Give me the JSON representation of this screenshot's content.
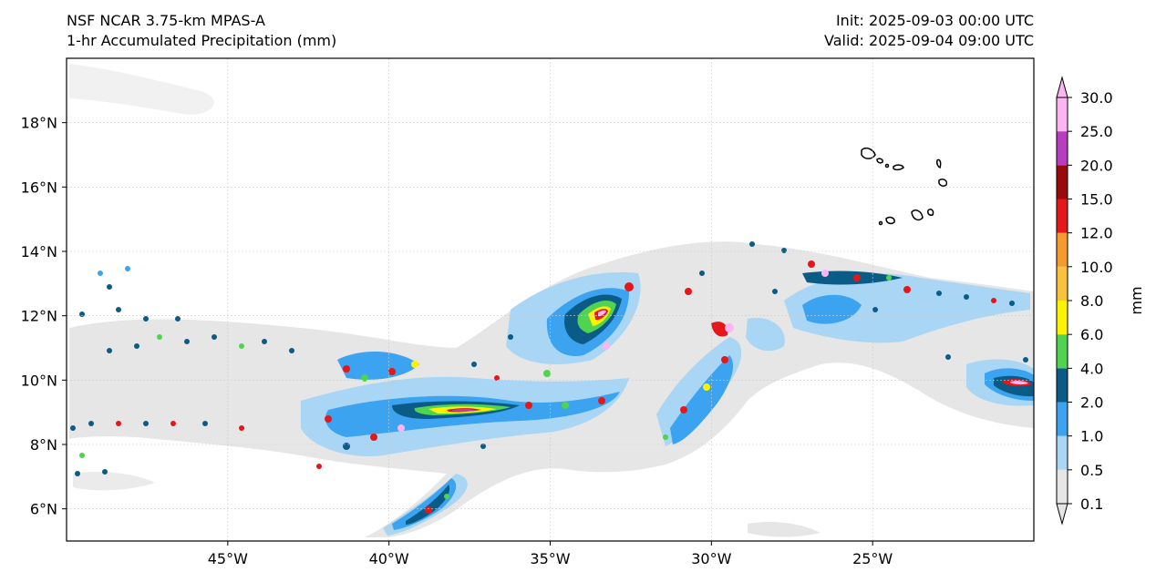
{
  "header": {
    "title_line1": "NSF NCAR 3.75-km MPAS-A",
    "title_line2": "1-hr Accumulated Precipitation (mm)",
    "init": "Init: 2025-09-03 00:00 UTC",
    "valid": "Valid: 2025-09-04 09:00 UTC"
  },
  "map": {
    "lon_range": [
      -50.0,
      -20.0
    ],
    "lat_range": [
      5.0,
      20.0
    ],
    "lon_ticks": [
      -45,
      -40,
      -35,
      -30,
      -25
    ],
    "lon_tick_labels": [
      "45°W",
      "40°W",
      "35°W",
      "30°W",
      "25°W"
    ],
    "lat_ticks": [
      6,
      8,
      10,
      12,
      14,
      16,
      18
    ],
    "lat_tick_labels": [
      "6°N",
      "8°N",
      "10°N",
      "12°N",
      "14°N",
      "16°N",
      "18°N"
    ],
    "gridlines": true,
    "land_feature": "Cape Verde islands outline"
  },
  "colorbar": {
    "label": "mm",
    "levels": [
      "0.1",
      "0.5",
      "1.0",
      "2.0",
      "4.0",
      "6.0",
      "8.0",
      "10.0",
      "12.0",
      "15.0",
      "20.0",
      "25.0",
      "30.0"
    ],
    "colors": [
      "#e6e6e6",
      "#a9d6f5",
      "#3ba3ef",
      "#0b5b87",
      "#4fd350",
      "#fff200",
      "#f9c23c",
      "#f49a2e",
      "#e4171b",
      "#9a0a0a",
      "#b93dbf",
      "#fbb6f2"
    ],
    "extend": "both"
  }
}
